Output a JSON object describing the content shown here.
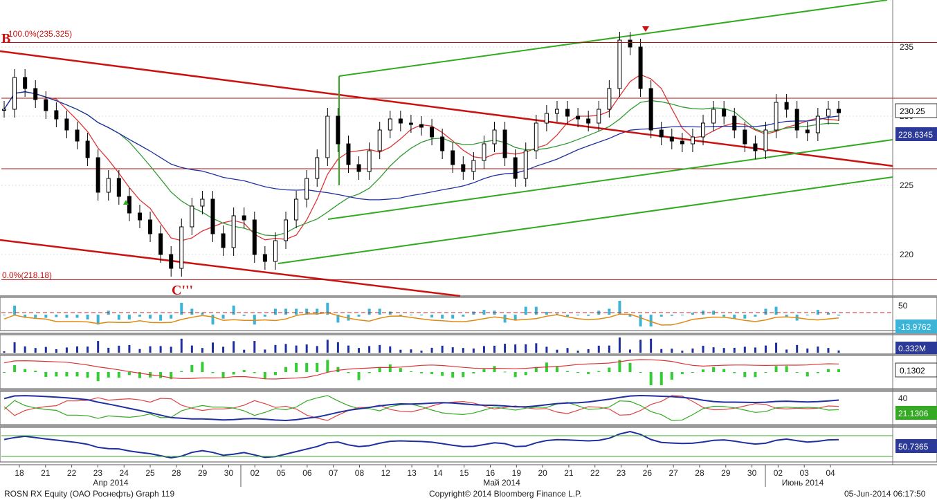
{
  "colors": {
    "candle": "#000000",
    "channel_green": "#33aa22",
    "trend_red": "#cc1111",
    "ma_red": "#dd3333",
    "ma_green": "#339933",
    "ma_blue": "#1f2fa0",
    "hist_cyan": "#3cb4d8",
    "hist_magenta": "#e030c8",
    "osc_orange": "#e08a10",
    "label_bg": "#2b3a99"
  },
  "chart_data": {
    "type": "candlestick",
    "title": "ROSN RX Equity (ОАО Роснефть) Graph 119",
    "date_ticks": [
      "18",
      "21",
      "22",
      "23",
      "24",
      "25",
      "28",
      "29",
      "30",
      "02",
      "05",
      "06",
      "07",
      "08",
      "12",
      "13",
      "14",
      "15",
      "16",
      "19",
      "20",
      "21",
      "22",
      "23",
      "26",
      "27",
      "28",
      "29",
      "30",
      "02",
      "03",
      "04"
    ],
    "month_labels": [
      "Апр 2014",
      "Май 2014",
      "Июнь 2014"
    ],
    "ylim": [
      217,
      238
    ],
    "y_ticks": [
      220,
      225,
      230,
      235
    ],
    "price_series": [
      230.5,
      232.8,
      232.0,
      231.2,
      230.4,
      229.8,
      229.0,
      228.2,
      227.0,
      224.5,
      225.5,
      224.2,
      223.0,
      222.5,
      221.5,
      220.0,
      219.0,
      222.0,
      223.5,
      224.0,
      221.5,
      220.5,
      222.8,
      222.5,
      220.0,
      219.5,
      221.0,
      222.5,
      224.0,
      225.5,
      227.0,
      230.0,
      228.0,
      226.5,
      226.0,
      227.5,
      229.0,
      229.8,
      229.5,
      229.4,
      229.2,
      228.5,
      227.5,
      226.5,
      226.0,
      226.8,
      228.0,
      229.0,
      227.0,
      225.5,
      227.5,
      229.5,
      230.2,
      230.5,
      230.0,
      229.8,
      229.5,
      230.5,
      232.0,
      235.5,
      235.0,
      232.0,
      229.0,
      228.5,
      228.2,
      228.0,
      228.5,
      229.5,
      230.5,
      230.0,
      229.0,
      228.0,
      227.5,
      229.0,
      231.0,
      230.5,
      229.0,
      228.8,
      230.0,
      230.5,
      230.25
    ],
    "fib_levels": [
      {
        "label": "100.0%(235.325)",
        "value": 235.325
      },
      {
        "label": "0.0%(218.18)",
        "value": 218.18
      }
    ],
    "horizontal_levels": [
      226.2,
      231.3
    ],
    "annotations": [
      "B",
      "C'''"
    ],
    "price_labels": {
      "last": "230.25",
      "ma": "228.6345"
    },
    "indicator_ticks": {
      "osc1": "50",
      "osc3": "40"
    },
    "indicator_values": {
      "oscillator": "-13.9762",
      "volume": "0.332M",
      "macd": "0.1302",
      "dmi": "21.1306",
      "rsi": "50.7365"
    }
  },
  "footer": {
    "left": "ROSN RX Equity (ОАО Роснефть) Graph 119",
    "center": "Copyright© 2014 Bloomberg Finance L.P.",
    "right": "05-Jun-2014 06:17:50"
  }
}
